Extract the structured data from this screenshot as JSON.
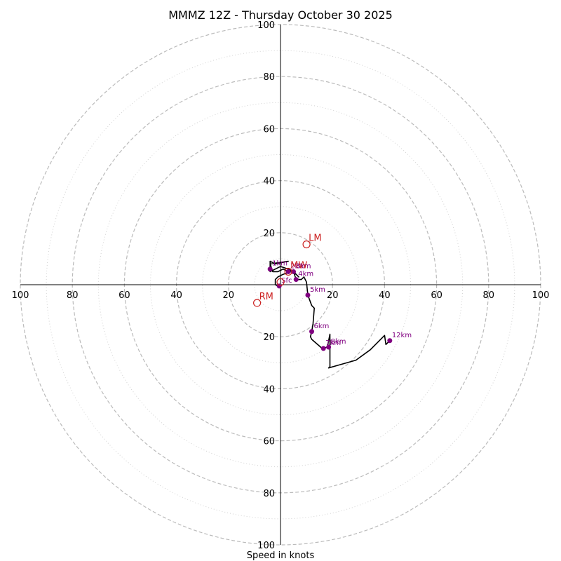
{
  "chart_data": {
    "type": "hodograph",
    "title": "MMMZ 12Z - Thursday October 30 2025",
    "xlabel": "Speed in knots",
    "xlim": [
      -100,
      100
    ],
    "ylim": [
      -100,
      100
    ],
    "ring_speeds_major": [
      20,
      40,
      60,
      80,
      100
    ],
    "ring_speeds_minor": [
      10,
      30,
      50,
      70,
      90
    ],
    "tick_labels": [
      "20",
      "40",
      "60",
      "80",
      "100"
    ],
    "grid": true,
    "colors": {
      "trace": "#000000",
      "marker": "#800080",
      "motion": "#cc2222",
      "major_ring": "#bbbbbb",
      "minor_ring": "#d2d2d2",
      "axis": "#000000"
    },
    "trace_points": [
      [
        0,
        -1
      ],
      [
        -2,
        0
      ],
      [
        -2,
        2
      ],
      [
        -1,
        3
      ],
      [
        1,
        4
      ],
      [
        4,
        5
      ],
      [
        6,
        4
      ],
      [
        7,
        3
      ],
      [
        5,
        5
      ],
      [
        3,
        6
      ],
      [
        0,
        7
      ],
      [
        -2,
        6
      ],
      [
        -4,
        5
      ],
      [
        -4,
        7
      ],
      [
        -4,
        9
      ],
      [
        -2,
        8
      ],
      [
        3,
        9
      ],
      [
        -4,
        8
      ],
      [
        -3,
        5
      ],
      [
        -1,
        5
      ],
      [
        1,
        6
      ],
      [
        3,
        5
      ],
      [
        5,
        5
      ],
      [
        6,
        2
      ],
      [
        8,
        2
      ],
      [
        9,
        3
      ],
      [
        10,
        1
      ],
      [
        10.5,
        -4
      ],
      [
        12,
        -8
      ],
      [
        13,
        -9
      ],
      [
        12.5,
        -15
      ],
      [
        12,
        -18
      ],
      [
        11.5,
        -20
      ],
      [
        12,
        -21
      ],
      [
        16,
        -24.5
      ],
      [
        18,
        -24
      ],
      [
        19,
        -19
      ],
      [
        19,
        -24
      ],
      [
        19,
        -31.5
      ],
      [
        18.5,
        -32
      ],
      [
        22,
        -31
      ],
      [
        29,
        -29
      ],
      [
        34.5,
        -25
      ],
      [
        40,
        -19.5
      ],
      [
        40.5,
        -23
      ],
      [
        42,
        -21.5
      ]
    ],
    "height_markers": [
      {
        "label": "Sfc",
        "u": -0.5,
        "v": -0.5
      },
      {
        "label": "1km",
        "u": -4,
        "v": 6
      },
      {
        "label": "2km",
        "u": 3,
        "v": 5
      },
      {
        "label": "3km",
        "u": 5,
        "v": 5
      },
      {
        "label": "4km",
        "u": 6,
        "v": 2
      },
      {
        "label": "5km",
        "u": 10.5,
        "v": -4
      },
      {
        "label": "6km",
        "u": 12,
        "v": -18
      },
      {
        "label": "7km",
        "u": 16.5,
        "v": -24.5
      },
      {
        "label": "8km",
        "u": 18.5,
        "v": -24
      },
      {
        "label": "12km",
        "u": 42,
        "v": -21.5
      }
    ],
    "storm_motions": [
      {
        "label": "LM",
        "u": 10,
        "v": 15.5
      },
      {
        "label": "RM",
        "u": -9,
        "v": -7
      },
      {
        "label": "MW",
        "u": 3,
        "v": 5
      },
      {
        "label": "",
        "u": 0,
        "v": 1
      }
    ]
  }
}
